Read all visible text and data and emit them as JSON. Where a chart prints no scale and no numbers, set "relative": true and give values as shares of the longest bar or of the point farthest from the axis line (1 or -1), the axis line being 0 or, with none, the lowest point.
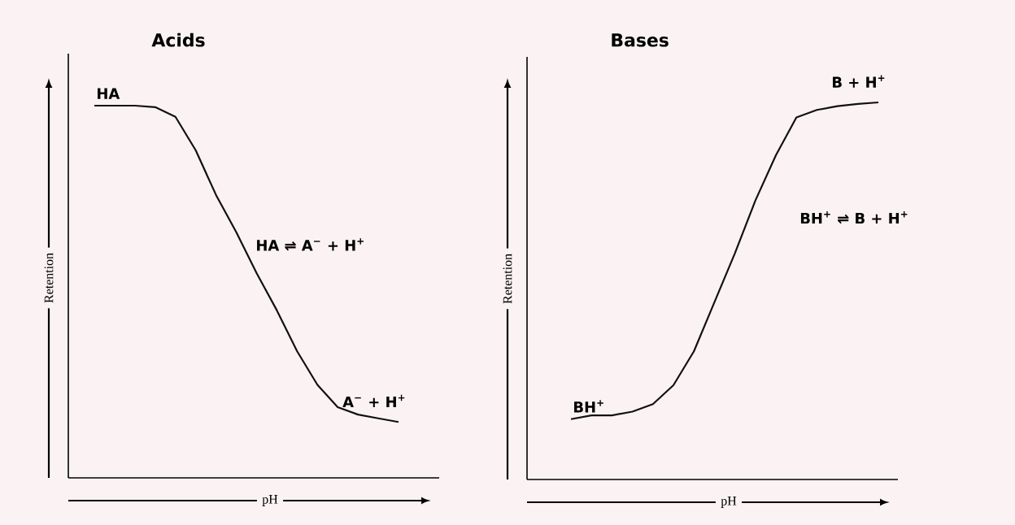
{
  "chart_data": [
    {
      "type": "line",
      "relative": true,
      "title": "Acids",
      "xlabel": "pH",
      "ylabel": "Retention",
      "tick_labels": false,
      "line_style": "solid",
      "marker": "none",
      "categories": [
        null,
        null,
        null,
        null,
        null,
        null,
        null,
        null,
        null,
        null,
        null,
        null,
        null,
        null,
        null,
        null
      ],
      "series": [
        {
          "color": "#111111",
          "values": [
            1,
            1,
            1,
            0.996,
            0.97,
            0.88,
            0.76,
            0.66,
            0.55,
            0.45,
            0.34,
            0.25,
            0.19,
            0.17,
            0.16,
            0.15
          ]
        }
      ],
      "annotations": [
        "HA",
        "HA ⇌ A$^{−}$ + H$^{+}$",
        "A$^{−}$ + H$^{+}$"
      ]
    },
    {
      "type": "line",
      "relative": true,
      "title": "Bases",
      "xlabel": "pH",
      "ylabel": "Retention",
      "tick_labels": false,
      "line_style": "solid",
      "marker": "none",
      "categories": [
        null,
        null,
        null,
        null,
        null,
        null,
        null,
        null,
        null,
        null,
        null,
        null,
        null,
        null,
        null,
        null
      ],
      "series": [
        {
          "color": "#111111",
          "values": [
            0.16,
            0.17,
            0.17,
            0.18,
            0.2,
            0.25,
            0.34,
            0.47,
            0.6,
            0.74,
            0.86,
            0.96,
            0.98,
            0.99,
            0.996,
            1
          ]
        }
      ],
      "annotations": [
        "BH$^{+}$",
        "BH$^{+}$ ⇌ B + H$^{+}$",
        "B + H$^{+}$"
      ]
    }
  ]
}
